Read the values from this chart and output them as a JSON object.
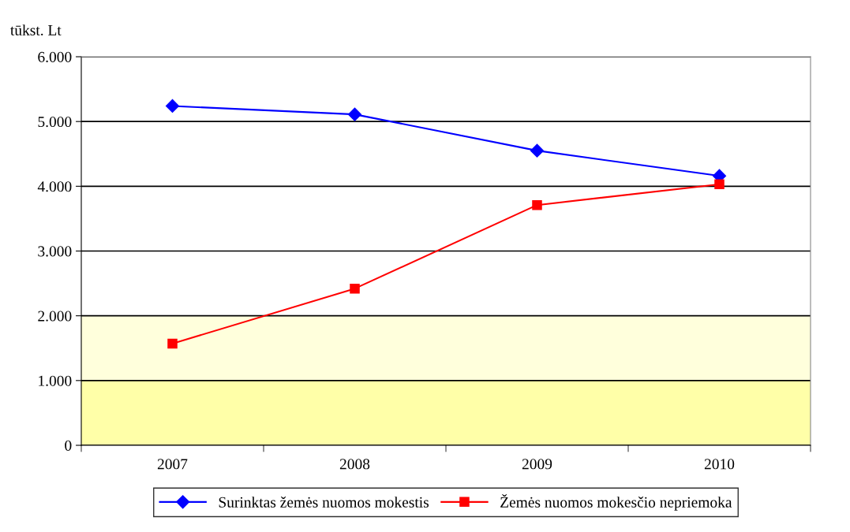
{
  "chart_data": {
    "type": "line",
    "ylabel": "tūkst. Lt",
    "categories": [
      "2007",
      "2008",
      "2009",
      "2010"
    ],
    "series": [
      {
        "name": "Surinktas žemės nuomos mokestis",
        "color": "#0000ff",
        "marker": "diamond",
        "values": [
          5240,
          5110,
          4550,
          4160
        ]
      },
      {
        "name": "Žemės nuomos mokesčio nepriemoka",
        "color": "#ff0000",
        "marker": "square",
        "values": [
          1570,
          2420,
          3710,
          4030
        ]
      }
    ],
    "ylim": [
      0,
      6000
    ],
    "yticks": [
      0,
      {
        "value": 1000,
        "label": "1.000"
      },
      {
        "value": 2000,
        "label": "2.000"
      },
      {
        "value": 3000,
        "label": "3.000"
      },
      {
        "value": 4000,
        "label": "4.000"
      },
      {
        "value": 5000,
        "label": "5.000"
      },
      {
        "value": 6000,
        "label": "6.000"
      }
    ],
    "bands": [
      {
        "axis": "y",
        "from": 0,
        "to": 1000,
        "color": "#ffffa8"
      },
      {
        "axis": "y",
        "from": 1000,
        "to": 2000,
        "color": "#ffffdc"
      }
    ],
    "grid": "y",
    "legend": "bottom",
    "line_style": "solid"
  }
}
